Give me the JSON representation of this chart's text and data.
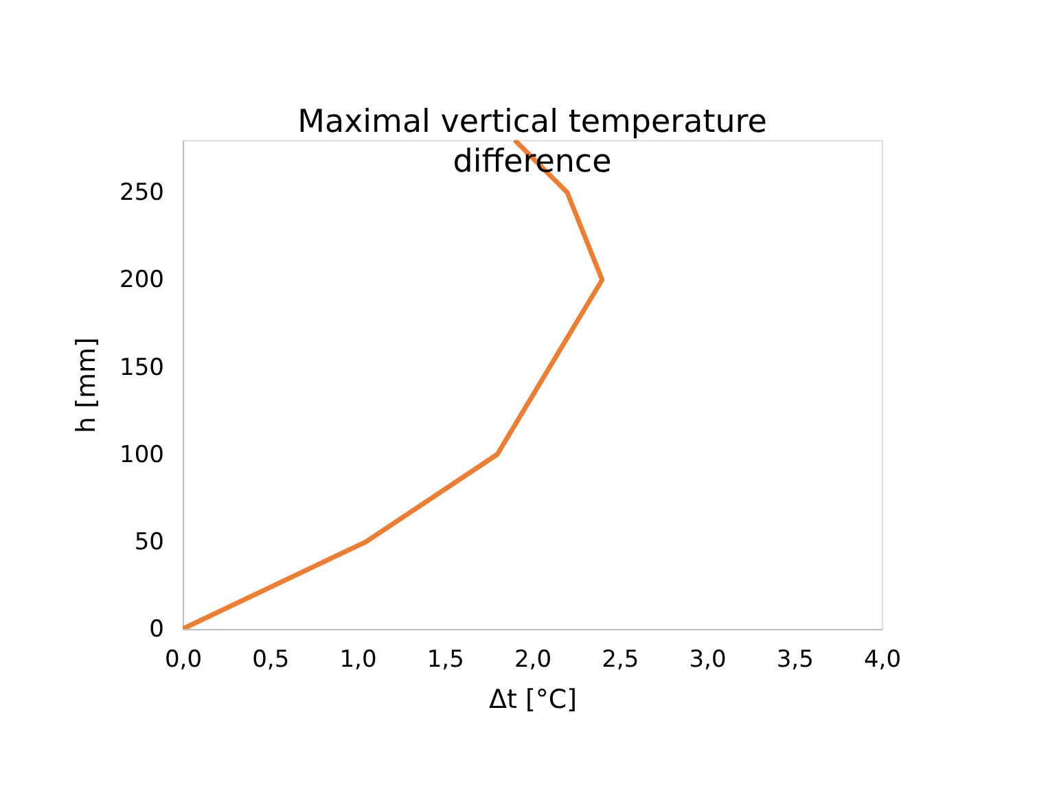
{
  "chart_data": {
    "type": "line",
    "title": "Maximal vertical temperature\ndifference",
    "xlabel": "Δt [°C]",
    "ylabel": "h [mm]",
    "x": [
      0,
      1.05,
      1.8,
      2.4,
      2.2,
      1.9
    ],
    "series": [
      {
        "color": "#ed7d31",
        "values": [
          0,
          50,
          100,
          200,
          250,
          280
        ]
      }
    ],
    "xlim": [
      0,
      4
    ],
    "xticks": [
      {
        "value": 0,
        "label": "0,0"
      },
      {
        "value": 0.5,
        "label": "0,5"
      },
      {
        "value": 1,
        "label": "1,0"
      },
      {
        "value": 1.5,
        "label": "1,5"
      },
      {
        "value": 2,
        "label": "2,0"
      },
      {
        "value": 2.5,
        "label": "2,5"
      },
      {
        "value": 3,
        "label": "3,0"
      },
      {
        "value": 3.5,
        "label": "3,5"
      },
      {
        "value": 4,
        "label": "4,0"
      }
    ],
    "ylim": [
      0,
      280
    ],
    "yticks": [
      0,
      50,
      100,
      150,
      200,
      250
    ],
    "grid": false,
    "marker": "none",
    "line_style": "solid"
  }
}
